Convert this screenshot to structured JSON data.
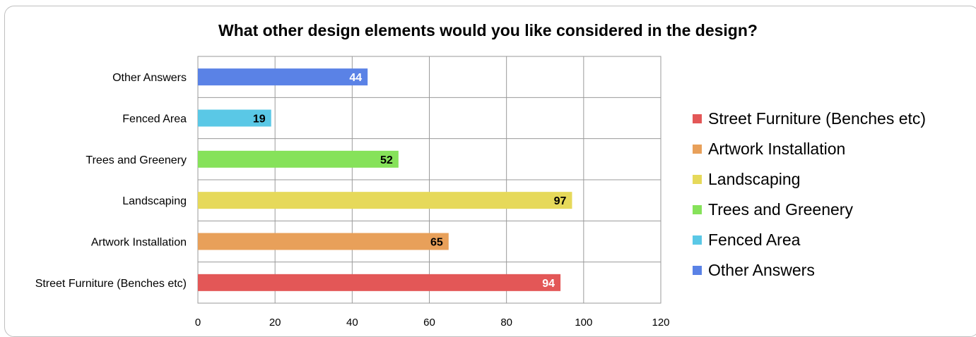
{
  "chart_data": {
    "type": "bar",
    "orientation": "horizontal",
    "title": "What other design elements would you like considered in the design?",
    "categories": [
      "Street Furniture (Benches etc)",
      "Artwork Installation",
      "Landscaping",
      "Trees and Greenery",
      "Fenced Area",
      "Other Answers"
    ],
    "values": [
      94,
      65,
      97,
      52,
      19,
      44
    ],
    "colors": [
      "#e35757",
      "#e8a05a",
      "#e6d95a",
      "#86e25a",
      "#5ac8e6",
      "#5a82e6"
    ],
    "label_colors": [
      "#ffffff",
      "#000000",
      "#000000",
      "#000000",
      "#000000",
      "#ffffff"
    ],
    "xlim": [
      0,
      120
    ],
    "xticks": [
      "0",
      "20",
      "40",
      "60",
      "80",
      "100",
      "120"
    ],
    "grid": true,
    "legend_position": "right",
    "legend": [
      "Street Furniture (Benches etc)",
      "Artwork Installation",
      "Landscaping",
      "Trees and Greenery",
      "Fenced Area",
      "Other Answers"
    ]
  }
}
